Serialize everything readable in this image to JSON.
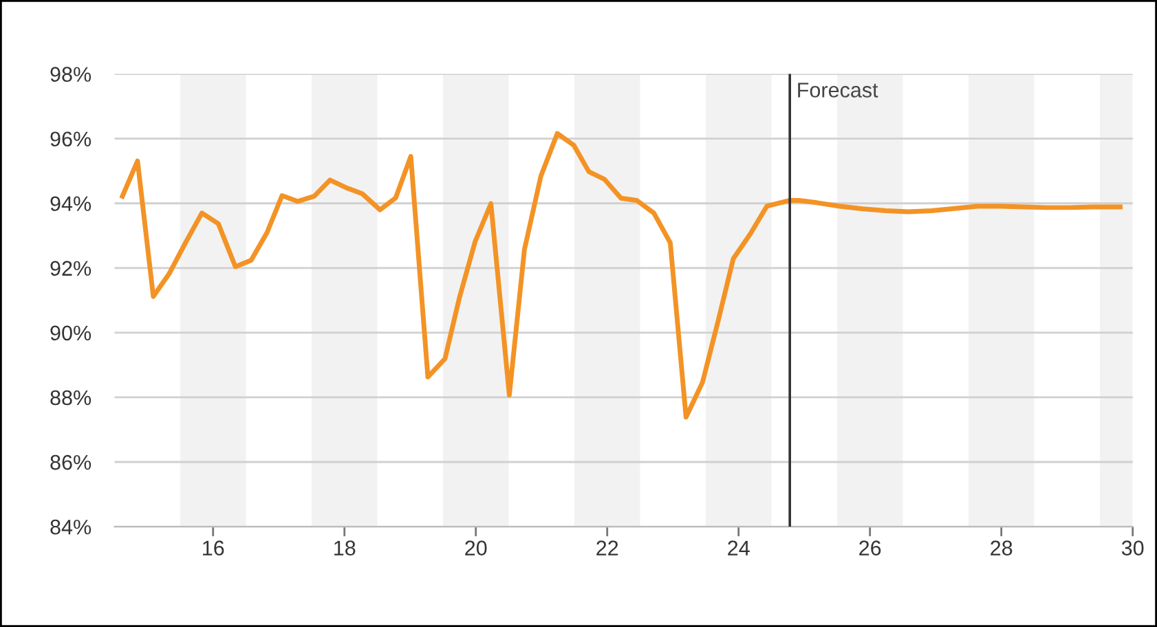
{
  "chart_data": {
    "type": "line",
    "x": [
      14.62,
      14.85,
      15.09,
      15.33,
      15.58,
      15.83,
      16.08,
      16.34,
      16.58,
      16.82,
      17.05,
      17.29,
      17.54,
      17.78,
      18.03,
      18.27,
      18.54,
      18.78,
      19.01,
      19.27,
      19.53,
      19.75,
      19.99,
      20.23,
      20.51,
      20.74,
      20.99,
      21.24,
      21.49,
      21.72,
      21.96,
      22.21,
      22.45,
      22.71,
      22.96,
      23.2,
      23.45,
      23.69,
      23.92,
      24.18,
      24.43,
      24.77,
      24.92,
      25.19,
      25.54,
      25.89,
      26.24,
      26.59,
      26.94,
      27.29,
      27.64,
      27.99,
      28.34,
      28.69,
      29.04,
      29.39,
      29.81
    ],
    "series": [
      {
        "color": "#f39325",
        "values": [
          94.22,
          95.31,
          91.12,
          91.82,
          92.78,
          93.7,
          93.37,
          92.04,
          92.24,
          93.09,
          94.24,
          94.06,
          94.22,
          94.72,
          94.48,
          94.3,
          93.8,
          94.17,
          95.45,
          88.63,
          89.19,
          91.08,
          92.82,
          93.99,
          88.07,
          92.57,
          94.84,
          96.16,
          95.8,
          94.98,
          94.74,
          94.16,
          94.09,
          93.7,
          92.78,
          87.39,
          88.46,
          90.37,
          92.29,
          93.06,
          93.91,
          94.09,
          94.09,
          94.02,
          93.91,
          93.83,
          93.77,
          93.74,
          93.77,
          93.84,
          93.91,
          93.91,
          93.89,
          93.87,
          93.87,
          93.89,
          93.89
        ]
      }
    ],
    "xlim": [
      14.5,
      30
    ],
    "xticks": [
      16,
      18,
      20,
      22,
      24,
      26,
      28,
      30
    ],
    "ylim": [
      84,
      98
    ],
    "yticks": [
      {
        "value": 84,
        "label": "84%"
      },
      {
        "value": 86,
        "label": "86%"
      },
      {
        "value": 88,
        "label": "88%"
      },
      {
        "value": 90,
        "label": "90%"
      },
      {
        "value": 92,
        "label": "92%"
      },
      {
        "value": 94,
        "label": "94%"
      },
      {
        "value": 96,
        "label": "96%"
      },
      {
        "value": 98,
        "label": "98%"
      }
    ],
    "grid": "y",
    "line_style": "solid",
    "ref_lines": [
      {
        "axis": "x",
        "value": 24.78,
        "label": "Forecast",
        "color": "#333333"
      }
    ],
    "bands": [
      {
        "axis": "x",
        "from": 15.5,
        "to": 16.5,
        "color": "#f2f2f2"
      },
      {
        "axis": "x",
        "from": 17.5,
        "to": 18.5,
        "color": "#f2f2f2"
      },
      {
        "axis": "x",
        "from": 19.5,
        "to": 20.5,
        "color": "#f2f2f2"
      },
      {
        "axis": "x",
        "from": 21.5,
        "to": 22.5,
        "color": "#f2f2f2"
      },
      {
        "axis": "x",
        "from": 23.5,
        "to": 24.5,
        "color": "#f2f2f2"
      },
      {
        "axis": "x",
        "from": 25.5,
        "to": 26.5,
        "color": "#f2f2f2"
      },
      {
        "axis": "x",
        "from": 27.5,
        "to": 28.5,
        "color": "#f2f2f2"
      },
      {
        "axis": "x",
        "from": 29.5,
        "to": 30,
        "color": "#f2f2f2"
      }
    ]
  }
}
